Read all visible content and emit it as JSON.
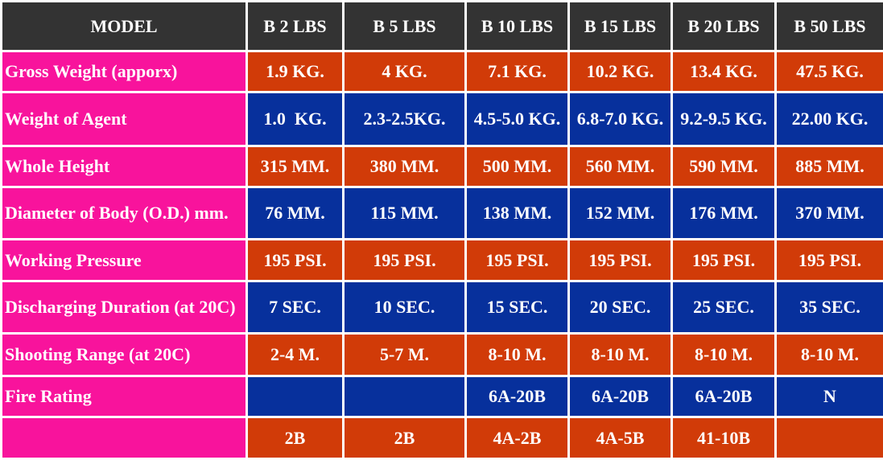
{
  "table": {
    "header": [
      "MODEL",
      "B 2 LBS",
      "B 5 LBS",
      "B 10 LBS",
      "B 15 LBS",
      "B 20 LBS",
      "B 50 LBS"
    ],
    "rows": [
      [
        "Gross Weight (apporx)",
        "1.9 KG.",
        "4 KG.",
        "7.1 KG.",
        "10.2 KG.",
        "13.4 KG.",
        "47.5 KG."
      ],
      [
        "Weight of Agent",
        "1.0  KG.",
        "2.3-2.5KG.",
        "4.5-5.0 KG.",
        "6.8-7.0 KG.",
        "9.2-9.5 KG.",
        "22.00 KG."
      ],
      [
        "Whole Height",
        "315 MM.",
        "380 MM.",
        "500 MM.",
        "560 MM.",
        "590 MM.",
        "885 MM."
      ],
      [
        "Diameter of Body (O.D.) mm.",
        "76 MM.",
        "115 MM.",
        "138 MM.",
        "152 MM.",
        "176 MM.",
        "370 MM."
      ],
      [
        "Working Pressure",
        "195 PSI.",
        "195 PSI.",
        "195 PSI.",
        "195 PSI.",
        "195 PSI.",
        "195 PSI."
      ],
      [
        "Discharging Duration (at 20C)",
        "7 SEC.",
        "10 SEC.",
        "15 SEC.",
        "20 SEC.",
        "25 SEC.",
        "35 SEC."
      ],
      [
        "Shooting Range (at 20C)",
        "2-4 M.",
        "5-7 M.",
        "8-10 M.",
        "8-10 M.",
        "8-10 M.",
        "8-10 M."
      ],
      [
        "Fire Rating",
        null,
        null,
        "6A-20B",
        "6A-20B",
        "6A-20B",
        "N"
      ],
      [
        null,
        "2B",
        "2B",
        "4A-2B",
        "4A-5B",
        "41-10B",
        null
      ]
    ]
  }
}
